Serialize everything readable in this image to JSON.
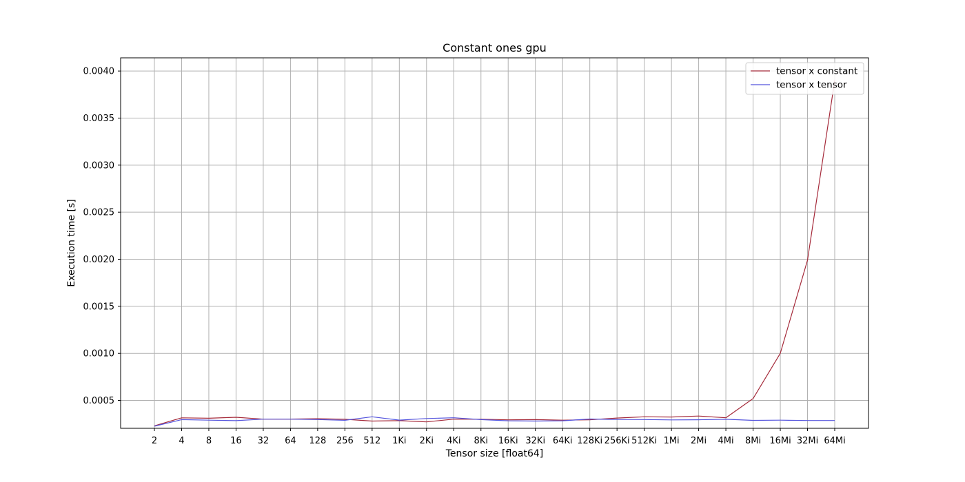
{
  "chart_data": {
    "type": "line",
    "title": "Constant ones gpu",
    "xlabel": "Tensor size [float64]",
    "ylabel": "Execution time [s]",
    "categories": [
      "2",
      "4",
      "8",
      "16",
      "32",
      "64",
      "128",
      "256",
      "512",
      "1Ki",
      "2Ki",
      "4Ki",
      "8Ki",
      "16Ki",
      "32Ki",
      "64Ki",
      "128Ki",
      "256Ki",
      "512Ki",
      "1Mi",
      "2Mi",
      "4Mi",
      "8Mi",
      "16Mi",
      "32Mi",
      "64Mi"
    ],
    "yticks": [
      "0.0005",
      "0.0010",
      "0.0015",
      "0.0020",
      "0.0025",
      "0.0030",
      "0.0035",
      "0.0040"
    ],
    "ylim": [
      0.000204,
      0.00414
    ],
    "grid": true,
    "legend_position": "top-right",
    "series": [
      {
        "name": "tensor x constant",
        "color": "#a52a3a",
        "values": [
          0.00023,
          0.000315,
          0.000311,
          0.000321,
          0.000301,
          0.000302,
          0.000306,
          0.0003,
          0.000281,
          0.000285,
          0.000272,
          0.000301,
          0.0003,
          0.000294,
          0.000296,
          0.00029,
          0.000295,
          0.000313,
          0.000326,
          0.000324,
          0.000334,
          0.000316,
          0.00052,
          0.001,
          0.00199,
          0.0039
        ]
      },
      {
        "name": "tensor x tensor",
        "color": "#5555dd",
        "values": [
          0.000226,
          0.000296,
          0.00029,
          0.000285,
          0.000301,
          0.000301,
          0.000297,
          0.000289,
          0.000326,
          0.000291,
          0.000308,
          0.000316,
          0.000296,
          0.000284,
          0.000281,
          0.000284,
          0.000303,
          0.000298,
          0.000297,
          0.000293,
          0.000295,
          0.0003,
          0.000288,
          0.00029,
          0.000287,
          0.000287
        ]
      }
    ]
  }
}
